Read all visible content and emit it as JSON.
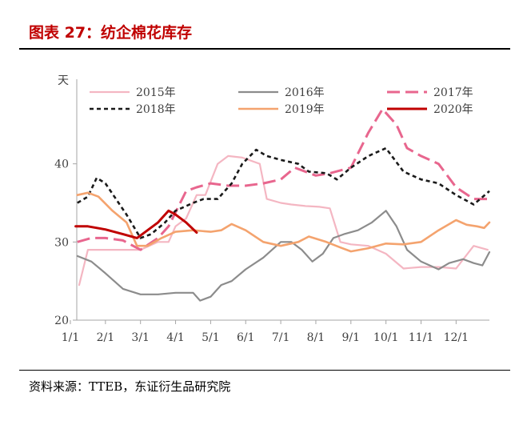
{
  "figure": {
    "title": "图表 27：纺企棉花库存",
    "source": "资料来源：TTEB，东证衍生品研究院"
  },
  "chart_data": {
    "type": "line",
    "title": "",
    "xlabel": "",
    "ylabel": "天",
    "ylim": [
      20,
      50
    ],
    "yticks": [
      20,
      30,
      40
    ],
    "xlim": [
      1,
      12.95
    ],
    "xticks": [
      {
        "label": "1/1",
        "x": 1
      },
      {
        "label": "2/1",
        "x": 2
      },
      {
        "label": "3/1",
        "x": 3
      },
      {
        "label": "4/1",
        "x": 4
      },
      {
        "label": "5/1",
        "x": 5
      },
      {
        "label": "6/1",
        "x": 6
      },
      {
        "label": "7/1",
        "x": 7
      },
      {
        "label": "8/1",
        "x": 8
      },
      {
        "label": "9/1",
        "x": 9
      },
      {
        "label": "10/1",
        "x": 10
      },
      {
        "label": "11/1",
        "x": 11
      },
      {
        "label": "12/1",
        "x": 12
      }
    ],
    "grid": false,
    "legend": "top",
    "series": [
      {
        "name": "2015年",
        "color": "#f4b6c2",
        "dash": "solid",
        "width": 2.2,
        "points": [
          [
            1.25,
            24.5
          ],
          [
            1.5,
            29
          ],
          [
            2,
            29
          ],
          [
            2.5,
            29
          ],
          [
            3,
            29
          ],
          [
            3.5,
            30
          ],
          [
            3.8,
            30
          ],
          [
            4.0,
            32
          ],
          [
            4.3,
            33
          ],
          [
            4.6,
            36
          ],
          [
            4.85,
            36
          ],
          [
            5.2,
            40
          ],
          [
            5.5,
            41
          ],
          [
            5.9,
            40.8
          ],
          [
            6.4,
            40
          ],
          [
            6.6,
            35.5
          ],
          [
            7,
            35
          ],
          [
            7.3,
            34.8
          ],
          [
            7.7,
            34.6
          ],
          [
            8.1,
            34.5
          ],
          [
            8.4,
            34.3
          ],
          [
            8.7,
            30
          ],
          [
            9,
            29.7
          ],
          [
            9.5,
            29.5
          ],
          [
            10,
            28.5
          ],
          [
            10.5,
            26.6
          ],
          [
            11,
            26.8
          ],
          [
            11.5,
            26.8
          ],
          [
            12,
            26.6
          ],
          [
            12.5,
            29.5
          ],
          [
            12.9,
            29
          ]
        ]
      },
      {
        "name": "2016年",
        "color": "#8c8c8c",
        "dash": "solid",
        "width": 2.2,
        "points": [
          [
            1.2,
            28.2
          ],
          [
            1.6,
            27.5
          ],
          [
            2,
            26
          ],
          [
            2.5,
            24
          ],
          [
            3,
            23.3
          ],
          [
            3.5,
            23.3
          ],
          [
            4,
            23.5
          ],
          [
            4.5,
            23.5
          ],
          [
            4.7,
            22.5
          ],
          [
            5,
            23
          ],
          [
            5.3,
            24.5
          ],
          [
            5.6,
            25
          ],
          [
            6,
            26.5
          ],
          [
            6.5,
            28
          ],
          [
            7,
            30
          ],
          [
            7.3,
            30
          ],
          [
            7.6,
            29
          ],
          [
            7.9,
            27.5
          ],
          [
            8.2,
            28.5
          ],
          [
            8.5,
            30.5
          ],
          [
            8.8,
            31
          ],
          [
            9.2,
            31.5
          ],
          [
            9.6,
            32.5
          ],
          [
            10,
            34
          ],
          [
            10.3,
            32
          ],
          [
            10.6,
            29
          ],
          [
            11,
            27.5
          ],
          [
            11.5,
            26.5
          ],
          [
            11.8,
            27.3
          ],
          [
            12.2,
            27.8
          ],
          [
            12.5,
            27.3
          ],
          [
            12.75,
            27
          ],
          [
            12.95,
            28.7
          ]
        ]
      },
      {
        "name": "2017年",
        "color": "#e8668e",
        "dash": "long",
        "width": 3,
        "points": [
          [
            1.2,
            30
          ],
          [
            1.6,
            30.5
          ],
          [
            2,
            30.5
          ],
          [
            2.5,
            30.2
          ],
          [
            3,
            29
          ],
          [
            3.5,
            30.5
          ],
          [
            3.8,
            32
          ],
          [
            4.3,
            36.5
          ],
          [
            4.6,
            37
          ],
          [
            5,
            37.5
          ],
          [
            5.5,
            37.2
          ],
          [
            6,
            37.2
          ],
          [
            6.5,
            37.5
          ],
          [
            7,
            38
          ],
          [
            7.4,
            39.5
          ],
          [
            8,
            38.5
          ],
          [
            8.4,
            38.8
          ],
          [
            9,
            39.5
          ],
          [
            9.5,
            44
          ],
          [
            9.9,
            47
          ],
          [
            10.3,
            45
          ],
          [
            10.6,
            42
          ],
          [
            11,
            41
          ],
          [
            11.5,
            40
          ],
          [
            12,
            37
          ],
          [
            12.5,
            35.5
          ],
          [
            12.95,
            35.5
          ]
        ]
      },
      {
        "name": "2018年",
        "color": "#1a1a1a",
        "dash": "short",
        "width": 2.6,
        "points": [
          [
            1.2,
            35
          ],
          [
            1.5,
            35.8
          ],
          [
            1.75,
            38.2
          ],
          [
            2,
            37.5
          ],
          [
            2.3,
            35.5
          ],
          [
            2.6,
            33.5
          ],
          [
            3,
            30.5
          ],
          [
            3.3,
            31
          ],
          [
            3.7,
            32.5
          ],
          [
            4,
            34
          ],
          [
            4.5,
            35
          ],
          [
            4.8,
            35.5
          ],
          [
            5.2,
            35.5
          ],
          [
            5.6,
            37.5
          ],
          [
            5.9,
            40
          ],
          [
            6.3,
            41.8
          ],
          [
            6.6,
            41
          ],
          [
            7,
            40.5
          ],
          [
            7.5,
            40
          ],
          [
            7.8,
            39
          ],
          [
            8.3,
            38.8
          ],
          [
            8.6,
            38
          ],
          [
            9,
            39.5
          ],
          [
            9.5,
            41
          ],
          [
            10,
            42
          ],
          [
            10.5,
            39
          ],
          [
            11,
            38
          ],
          [
            11.5,
            37.5
          ],
          [
            12,
            36
          ],
          [
            12.5,
            34.8
          ],
          [
            12.95,
            36.5
          ]
        ]
      },
      {
        "name": "2019年",
        "color": "#f4a36e",
        "dash": "solid",
        "width": 2.6,
        "points": [
          [
            1.2,
            36
          ],
          [
            1.5,
            36.3
          ],
          [
            1.8,
            35.8
          ],
          [
            2.2,
            34
          ],
          [
            2.6,
            32.5
          ],
          [
            2.9,
            29.5
          ],
          [
            3.2,
            29.5
          ],
          [
            3.6,
            30.5
          ],
          [
            4,
            31.3
          ],
          [
            4.5,
            31.5
          ],
          [
            5,
            31.3
          ],
          [
            5.3,
            31.5
          ],
          [
            5.6,
            32.3
          ],
          [
            6,
            31.5
          ],
          [
            6.5,
            30
          ],
          [
            7,
            29.5
          ],
          [
            7.5,
            30
          ],
          [
            7.8,
            30.7
          ],
          [
            8.3,
            30
          ],
          [
            8.7,
            29.3
          ],
          [
            9,
            28.8
          ],
          [
            9.5,
            29.2
          ],
          [
            10,
            29.8
          ],
          [
            10.5,
            29.7
          ],
          [
            11,
            30
          ],
          [
            11.5,
            31.5
          ],
          [
            12,
            32.8
          ],
          [
            12.3,
            32.2
          ],
          [
            12.6,
            32
          ],
          [
            12.8,
            31.8
          ],
          [
            12.95,
            32.5
          ]
        ]
      },
      {
        "name": "2020年",
        "color": "#c00000",
        "dash": "solid",
        "width": 3,
        "points": [
          [
            1.15,
            32
          ],
          [
            1.5,
            32
          ],
          [
            2,
            31.6
          ],
          [
            2.5,
            31
          ],
          [
            2.9,
            30.5
          ],
          [
            3.2,
            31.5
          ],
          [
            3.5,
            32.5
          ],
          [
            3.8,
            34
          ],
          [
            4,
            33.5
          ],
          [
            4.3,
            32.5
          ],
          [
            4.6,
            31.2
          ]
        ]
      }
    ]
  }
}
